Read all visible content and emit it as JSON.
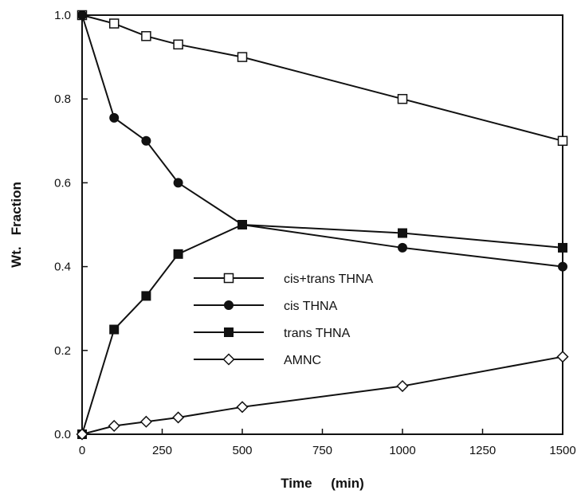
{
  "chart_data": {
    "type": "line",
    "title": "",
    "xlabel": "Time     (min)",
    "ylabel": "Wt.   Fraction",
    "xlim": [
      0,
      1500
    ],
    "ylim": [
      0.0,
      1.0
    ],
    "xticks": [
      0,
      250,
      500,
      750,
      1000,
      1250,
      1500
    ],
    "xtick_labels": [
      "0",
      "250",
      "500",
      "750",
      "1000",
      "1250",
      "1500"
    ],
    "yticks": [
      0.0,
      0.2,
      0.4,
      0.6,
      0.8,
      1.0
    ],
    "ytick_labels": [
      "0.0",
      "0.2",
      "0.4",
      "0.6",
      "0.8",
      "1.0"
    ],
    "grid": false,
    "legend_position": "center",
    "series": [
      {
        "name": "cis+trans THNA",
        "marker": "open-square",
        "color": "#111111",
        "x": [
          0,
          100,
          200,
          300,
          500,
          1000,
          1500
        ],
        "y": [
          1.0,
          0.98,
          0.95,
          0.93,
          0.9,
          0.8,
          0.7
        ]
      },
      {
        "name": "cis THNA",
        "marker": "filled-circle",
        "color": "#111111",
        "x": [
          0,
          100,
          200,
          300,
          500,
          1000,
          1500
        ],
        "y": [
          1.0,
          0.755,
          0.7,
          0.6,
          0.5,
          0.445,
          0.4
        ]
      },
      {
        "name": "trans THNA",
        "marker": "filled-square",
        "color": "#111111",
        "x": [
          0,
          100,
          200,
          300,
          500,
          1000,
          1500
        ],
        "y": [
          0.0,
          0.25,
          0.33,
          0.43,
          0.5,
          0.48,
          0.445
        ]
      },
      {
        "name": "AMNC",
        "marker": "open-diamond",
        "color": "#111111",
        "x": [
          0,
          100,
          200,
          300,
          500,
          1000,
          1500
        ],
        "y": [
          0.0,
          0.02,
          0.03,
          0.04,
          0.065,
          0.115,
          0.185
        ]
      }
    ]
  }
}
